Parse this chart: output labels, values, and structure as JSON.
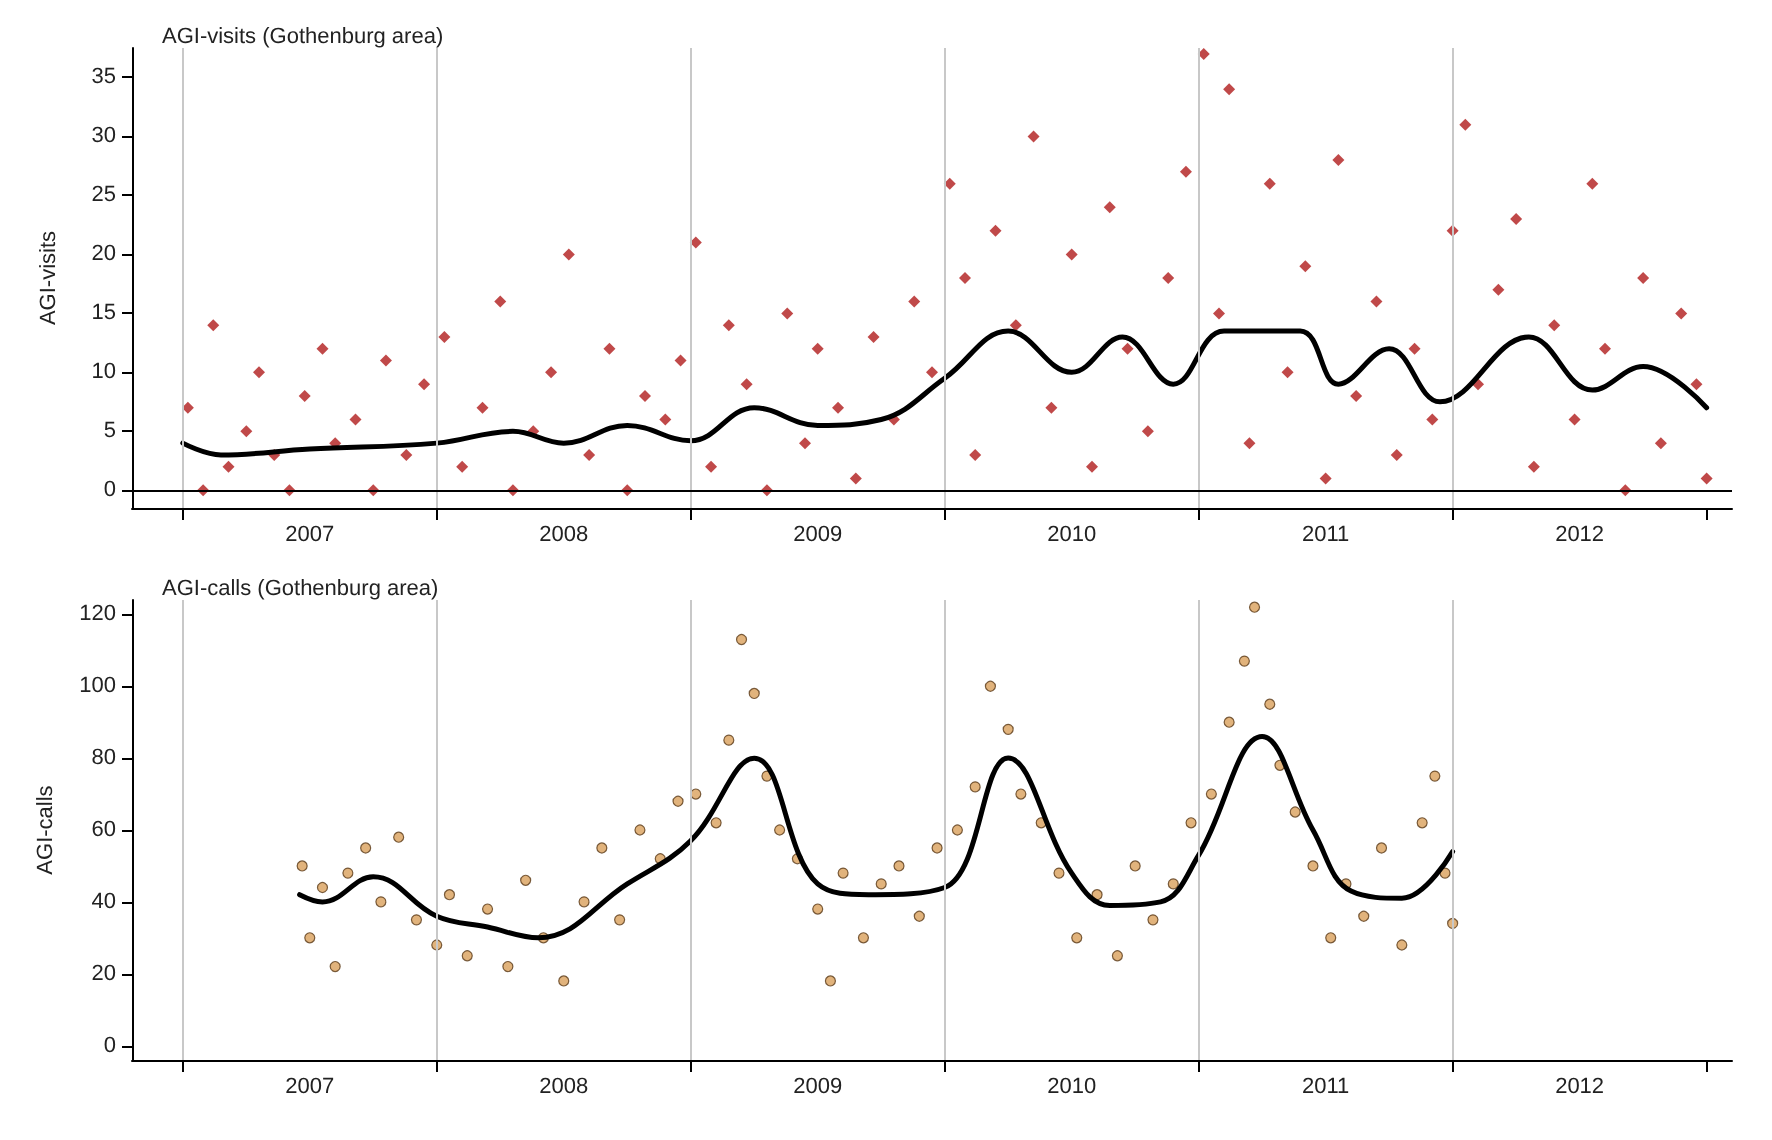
{
  "chart_data": [
    {
      "type": "scatter",
      "title": "AGI-visits (Gothenburg area)",
      "ylabel": "AGI-visits",
      "xlim": [
        2006.8,
        2013.1
      ],
      "ylim": [
        -1.5,
        37.5
      ],
      "yticks": [
        0,
        5,
        10,
        15,
        20,
        25,
        30,
        35
      ],
      "xticks": [
        {
          "value": 2007,
          "label": null
        },
        {
          "value": 2007.5,
          "label": "2007"
        },
        {
          "value": 2008,
          "label": null
        },
        {
          "value": 2008.5,
          "label": "2008"
        },
        {
          "value": 2009,
          "label": null
        },
        {
          "value": 2009.5,
          "label": "2009"
        },
        {
          "value": 2010,
          "label": null
        },
        {
          "value": 2010.5,
          "label": "2010"
        },
        {
          "value": 2011,
          "label": null
        },
        {
          "value": 2011.5,
          "label": "2011"
        },
        {
          "value": 2012,
          "label": null
        },
        {
          "value": 2012.5,
          "label": "2012"
        },
        {
          "value": 2013,
          "label": null
        }
      ],
      "grid": false,
      "marker": "diamond",
      "ref_lines": [
        {
          "axis": "x",
          "value": 2007,
          "color": "#c8c8c8"
        },
        {
          "axis": "x",
          "value": 2008,
          "color": "#c8c8c8"
        },
        {
          "axis": "x",
          "value": 2009,
          "color": "#c8c8c8"
        },
        {
          "axis": "x",
          "value": 2010,
          "color": "#c8c8c8"
        },
        {
          "axis": "x",
          "value": 2011,
          "color": "#c8c8c8"
        },
        {
          "axis": "x",
          "value": 2012,
          "color": "#c8c8c8"
        },
        {
          "axis": "y",
          "value": 0,
          "color": "#000000"
        }
      ],
      "series": [
        {
          "color": "#b01c1c",
          "x": [
            2007.02,
            2007.08,
            2007.12,
            2007.18,
            2007.25,
            2007.3,
            2007.36,
            2007.42,
            2007.48,
            2007.55,
            2007.6,
            2007.68,
            2007.75,
            2007.8,
            2007.88,
            2007.95,
            2008.03,
            2008.1,
            2008.18,
            2008.25,
            2008.3,
            2008.38,
            2008.45,
            2008.52,
            2008.6,
            2008.68,
            2008.75,
            2008.82,
            2008.9,
            2008.96,
            2009.02,
            2009.08,
            2009.15,
            2009.22,
            2009.3,
            2009.38,
            2009.45,
            2009.5,
            2009.58,
            2009.65,
            2009.72,
            2009.8,
            2009.88,
            2009.95,
            2010.02,
            2010.08,
            2010.12,
            2010.2,
            2010.28,
            2010.35,
            2010.42,
            2010.5,
            2010.58,
            2010.65,
            2010.72,
            2010.8,
            2010.88,
            2010.95,
            2011.02,
            2011.08,
            2011.12,
            2011.2,
            2011.28,
            2011.35,
            2011.42,
            2011.5,
            2011.55,
            2011.62,
            2011.7,
            2011.78,
            2011.85,
            2011.92,
            2012.0,
            2012.05,
            2012.1,
            2012.18,
            2012.25,
            2012.32,
            2012.4,
            2012.48,
            2012.55,
            2012.6,
            2012.68,
            2012.75,
            2012.82,
            2012.9,
            2012.96,
            2013.0
          ],
          "values": [
            7,
            0,
            14,
            2,
            5,
            10,
            3,
            0,
            8,
            12,
            4,
            6,
            0,
            11,
            3,
            9,
            13,
            2,
            7,
            16,
            0,
            5,
            10,
            20,
            3,
            12,
            0,
            8,
            6,
            11,
            21,
            2,
            14,
            9,
            0,
            15,
            4,
            12,
            7,
            1,
            13,
            6,
            16,
            10,
            26,
            18,
            3,
            22,
            14,
            30,
            7,
            20,
            2,
            24,
            12,
            5,
            18,
            27,
            37,
            15,
            34,
            4,
            26,
            10,
            19,
            1,
            28,
            8,
            16,
            3,
            12,
            6,
            22,
            31,
            9,
            17,
            23,
            2,
            14,
            6,
            26,
            12,
            0,
            18,
            4,
            15,
            9,
            1
          ]
        },
        {
          "type": "line",
          "color": "#000000",
          "marker": "none",
          "x": [
            2007.0,
            2007.15,
            2007.5,
            2008.0,
            2008.3,
            2008.5,
            2008.75,
            2009.0,
            2009.25,
            2009.5,
            2009.75,
            2010.0,
            2010.25,
            2010.5,
            2010.7,
            2010.9,
            2011.1,
            2011.4,
            2011.55,
            2011.75,
            2011.95,
            2012.3,
            2012.55,
            2012.75,
            2013.0
          ],
          "values": [
            4,
            3,
            3.5,
            4,
            5,
            4,
            5.5,
            4.2,
            7,
            5.5,
            6,
            9.5,
            13.5,
            10,
            13,
            9,
            13.5,
            13.5,
            9,
            12,
            7.5,
            13,
            8.5,
            10.5,
            7
          ]
        }
      ]
    },
    {
      "type": "scatter",
      "title": "AGI-calls (Gothenburg area)",
      "ylabel": "AGI-calls",
      "xlim": [
        2006.8,
        2013.1
      ],
      "ylim": [
        -4,
        124
      ],
      "yticks": [
        0,
        20,
        40,
        60,
        80,
        100,
        120
      ],
      "xticks": [
        {
          "value": 2007,
          "label": null
        },
        {
          "value": 2007.5,
          "label": "2007"
        },
        {
          "value": 2008,
          "label": null
        },
        {
          "value": 2008.5,
          "label": "2008"
        },
        {
          "value": 2009,
          "label": null
        },
        {
          "value": 2009.5,
          "label": "2009"
        },
        {
          "value": 2010,
          "label": null
        },
        {
          "value": 2010.5,
          "label": "2010"
        },
        {
          "value": 2011,
          "label": null
        },
        {
          "value": 2011.5,
          "label": "2011"
        },
        {
          "value": 2012,
          "label": null
        },
        {
          "value": 2012.5,
          "label": "2012"
        },
        {
          "value": 2013,
          "label": null
        }
      ],
      "grid": false,
      "marker": "circle",
      "ref_lines": [
        {
          "axis": "x",
          "value": 2007,
          "color": "#c8c8c8"
        },
        {
          "axis": "x",
          "value": 2008,
          "color": "#c8c8c8"
        },
        {
          "axis": "x",
          "value": 2009,
          "color": "#c8c8c8"
        },
        {
          "axis": "x",
          "value": 2010,
          "color": "#c8c8c8"
        },
        {
          "axis": "x",
          "value": 2011,
          "color": "#c8c8c8"
        },
        {
          "axis": "x",
          "value": 2012,
          "color": "#c8c8c8"
        }
      ],
      "series": [
        {
          "color": "#d9a05b",
          "x": [
            2007.47,
            2007.5,
            2007.55,
            2007.6,
            2007.65,
            2007.72,
            2007.78,
            2007.85,
            2007.92,
            2008.0,
            2008.05,
            2008.12,
            2008.2,
            2008.28,
            2008.35,
            2008.42,
            2008.5,
            2008.58,
            2008.65,
            2008.72,
            2008.8,
            2008.88,
            2008.95,
            2009.02,
            2009.1,
            2009.15,
            2009.2,
            2009.25,
            2009.3,
            2009.35,
            2009.42,
            2009.5,
            2009.55,
            2009.6,
            2009.68,
            2009.75,
            2009.82,
            2009.9,
            2009.97,
            2010.05,
            2010.12,
            2010.18,
            2010.25,
            2010.3,
            2010.38,
            2010.45,
            2010.52,
            2010.6,
            2010.68,
            2010.75,
            2010.82,
            2010.9,
            2010.97,
            2011.05,
            2011.12,
            2011.18,
            2011.22,
            2011.28,
            2011.32,
            2011.38,
            2011.45,
            2011.52,
            2011.58,
            2011.65,
            2011.72,
            2011.8,
            2011.88,
            2011.93,
            2011.97,
            2012.0
          ],
          "values": [
            50,
            30,
            44,
            22,
            48,
            55,
            40,
            58,
            35,
            28,
            42,
            25,
            38,
            22,
            46,
            30,
            18,
            40,
            55,
            35,
            60,
            52,
            68,
            70,
            62,
            85,
            113,
            98,
            75,
            60,
            52,
            38,
            18,
            48,
            30,
            45,
            50,
            36,
            55,
            60,
            72,
            100,
            88,
            70,
            62,
            48,
            30,
            42,
            25,
            50,
            35,
            45,
            62,
            70,
            90,
            107,
            122,
            95,
            78,
            65,
            50,
            30,
            45,
            36,
            55,
            28,
            62,
            75,
            48,
            34
          ]
        },
        {
          "type": "line",
          "color": "#000000",
          "marker": "none",
          "x": [
            2007.46,
            2007.55,
            2007.75,
            2008.0,
            2008.2,
            2008.4,
            2008.75,
            2009.0,
            2009.25,
            2009.5,
            2009.7,
            2010.0,
            2010.25,
            2010.5,
            2010.65,
            2010.85,
            2011.0,
            2011.25,
            2011.45,
            2011.6,
            2011.8,
            2012.0
          ],
          "values": [
            42,
            40,
            47,
            36,
            33,
            30,
            45,
            57,
            80,
            45,
            42,
            44,
            80,
            48,
            39,
            40,
            53,
            86,
            60,
            43,
            41,
            54
          ]
        }
      ]
    }
  ]
}
